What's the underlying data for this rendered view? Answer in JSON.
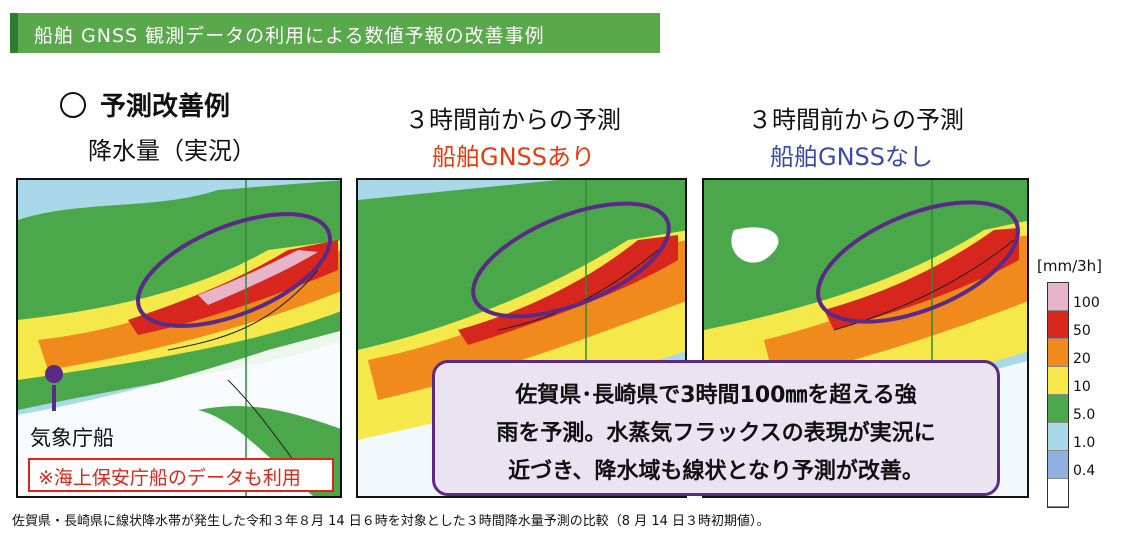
{
  "banner": {
    "title": "船舶 GNSS 観測データの利用による数値予報の改善事例"
  },
  "heading": "予測改善例",
  "panels": [
    {
      "caption_line1": "降水量（実況）",
      "caption_line2": ""
    },
    {
      "caption_line1": "３時間前からの予測",
      "caption_line2": "船舶GNSSあり"
    },
    {
      "caption_line1": "３時間前からの予測",
      "caption_line2": "船舶GNSSなし"
    }
  ],
  "ship": {
    "label": "気象庁船"
  },
  "note": "※海上保安庁船のデータも利用",
  "callout": {
    "lines": [
      "佐賀県･長崎県で3時間100㎜を超える強",
      "雨を予測。水蒸気フラックスの表現が実況に",
      "近づき、降水域も線状となり予測が改善。"
    ]
  },
  "legend": {
    "unit": "[mm/3h]",
    "levels": [
      "100",
      "50",
      "20",
      "10",
      "5.0",
      "1.0",
      "0.4"
    ],
    "colors": [
      "#e8b4c8",
      "#d7261e",
      "#f08a1d",
      "#f5e84a",
      "#4aa84a",
      "#a9d8e8",
      "#8fb0e0",
      "#ffffff"
    ]
  },
  "colors": {
    "accent_purple": "#5b2a86",
    "banner_green": "#5aa84c",
    "red_text": "#e63b12",
    "blue_text": "#3a4aa8"
  },
  "footer": "佐賀県・長崎県に線状降水帯が発生した令和３年８月 14 日６時を対象とした３時間降水量予測の比較（8 月 14 日３時初期値）。"
}
